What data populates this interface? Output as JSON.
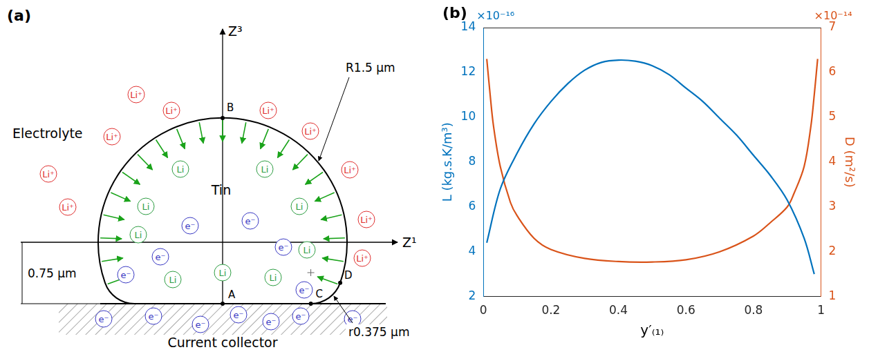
{
  "panel_a": {
    "letter": "(a)",
    "electrolyte": "Electrolyte",
    "tin": "Tin",
    "current_collector": "Current collector",
    "axis_horizontal": "Z¹",
    "axis_vertical": "Z³",
    "radius_label": "R1.5 µm",
    "fillet_label": "r0.375 µm",
    "height_label": "0.75 µm",
    "points": [
      "A",
      "B",
      "C",
      "D"
    ],
    "lithium_ion": "Li⁺",
    "lithium_atom": "Li",
    "electron": "e⁻"
  },
  "panel_b_letter": "(b)",
  "chart_data": {
    "type": "line",
    "x_label": "y′₍₁₎",
    "xlim": [
      0,
      1
    ],
    "xticks": [
      0,
      0.2,
      0.4,
      0.6,
      0.8,
      1
    ],
    "y_label": "L (kg.s.K/m³)",
    "y_scale_label": "×10⁻¹⁶",
    "ylim": [
      2,
      14
    ],
    "yticks": [
      2,
      4,
      6,
      8,
      10,
      12,
      14
    ],
    "y2_label": "D (m²/s)",
    "y2_scale_label": "×10⁻¹⁴",
    "y2lim": [
      1,
      7
    ],
    "y2ticks": [
      1,
      2,
      3,
      4,
      5,
      6,
      7
    ],
    "grid": false,
    "series": [
      {
        "axis": "y",
        "color": "#0072bd",
        "x": [
          0.01,
          0.05,
          0.1,
          0.15,
          0.2,
          0.25,
          0.3,
          0.35,
          0.4,
          0.45,
          0.5,
          0.55,
          0.6,
          0.65,
          0.7,
          0.75,
          0.8,
          0.85,
          0.9,
          0.95,
          0.98
        ],
        "values": [
          4.4,
          6.8,
          8.4,
          9.7,
          10.7,
          11.5,
          12.1,
          12.45,
          12.55,
          12.5,
          12.3,
          11.9,
          11.3,
          10.7,
          9.95,
          9.2,
          8.3,
          7.4,
          6.3,
          4.6,
          3.0
        ]
      },
      {
        "axis": "y2",
        "color": "#d95319",
        "x": [
          0.01,
          0.02,
          0.03,
          0.05,
          0.08,
          0.1,
          0.15,
          0.2,
          0.3,
          0.4,
          0.5,
          0.6,
          0.7,
          0.8,
          0.85,
          0.9,
          0.92,
          0.95,
          0.97,
          0.98,
          0.99
        ],
        "values": [
          6.3,
          5.5,
          4.8,
          3.9,
          3.1,
          2.8,
          2.3,
          2.05,
          1.85,
          1.78,
          1.77,
          1.82,
          2.0,
          2.35,
          2.65,
          3.0,
          3.3,
          3.9,
          4.8,
          5.5,
          6.3
        ]
      }
    ]
  }
}
